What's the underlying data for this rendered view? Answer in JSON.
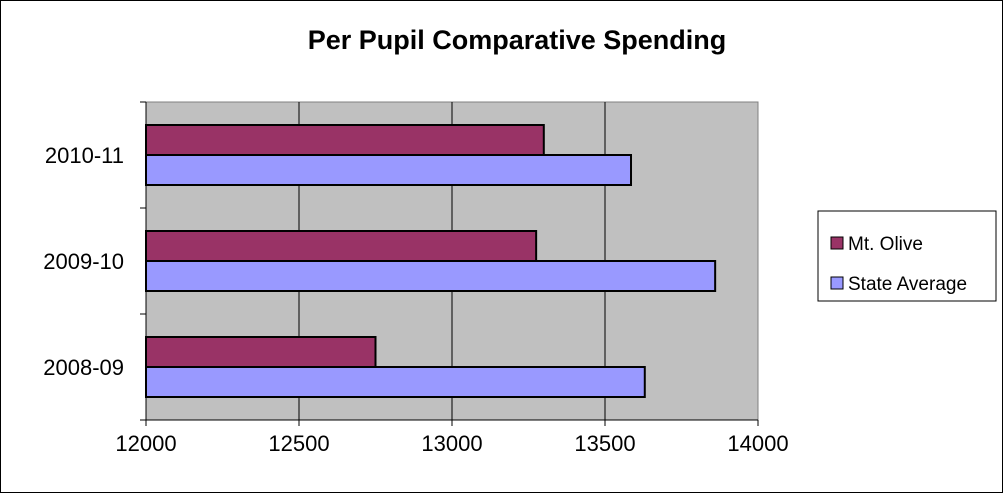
{
  "chart_data": {
    "type": "bar",
    "orientation": "horizontal",
    "title": "Per Pupil Comparative Spending",
    "xlabel": "",
    "ylabel": "",
    "categories": [
      "2008-09",
      "2009-10",
      "2010-11"
    ],
    "series": [
      {
        "name": "Mt. Olive",
        "color": "#993366",
        "values": [
          12750,
          13275,
          13300
        ]
      },
      {
        "name": "State Average",
        "color": "#9999FF",
        "values": [
          13630,
          13860,
          13585
        ]
      }
    ],
    "xlim": [
      12000,
      14000
    ],
    "xticks": [
      "12000",
      "12500",
      "13000",
      "13500",
      "14000"
    ],
    "grid": true,
    "plot_background": "#C0C0C0",
    "legend": "right"
  }
}
